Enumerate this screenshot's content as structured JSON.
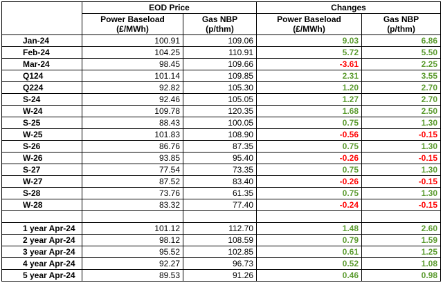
{
  "header": {
    "eod_price": "EOD Price",
    "changes": "Changes",
    "power_baseload_l1": "Power Baseload",
    "power_baseload_l2": "(£/MWh)",
    "gas_nbp_l1": "Gas NBP",
    "gas_nbp_l2": "(p/thm)"
  },
  "rows": [
    {
      "label": "Jan-24",
      "power": "100.91",
      "gas": "109.06",
      "power_chg": "9.03",
      "gas_chg": "6.86"
    },
    {
      "label": "Feb-24",
      "power": "104.25",
      "gas": "110.91",
      "power_chg": "5.72",
      "gas_chg": "5.50"
    },
    {
      "label": "Mar-24",
      "power": "98.45",
      "gas": "109.66",
      "power_chg": "-3.61",
      "gas_chg": "2.25"
    },
    {
      "label": "Q124",
      "power": "101.14",
      "gas": "109.85",
      "power_chg": "2.31",
      "gas_chg": "3.55"
    },
    {
      "label": "Q224",
      "power": "92.82",
      "gas": "105.30",
      "power_chg": "1.20",
      "gas_chg": "2.70"
    },
    {
      "label": "S-24",
      "power": "92.46",
      "gas": "105.05",
      "power_chg": "1.27",
      "gas_chg": "2.70"
    },
    {
      "label": "W-24",
      "power": "109.78",
      "gas": "120.35",
      "power_chg": "1.68",
      "gas_chg": "2.50"
    },
    {
      "label": "S-25",
      "power": "88.43",
      "gas": "100.05",
      "power_chg": "0.75",
      "gas_chg": "1.30"
    },
    {
      "label": "W-25",
      "power": "101.83",
      "gas": "108.90",
      "power_chg": "-0.56",
      "gas_chg": "-0.15"
    },
    {
      "label": "S-26",
      "power": "86.76",
      "gas": "87.35",
      "power_chg": "0.75",
      "gas_chg": "1.30"
    },
    {
      "label": "W-26",
      "power": "93.85",
      "gas": "95.40",
      "power_chg": "-0.26",
      "gas_chg": "-0.15"
    },
    {
      "label": "S-27",
      "power": "77.54",
      "gas": "73.35",
      "power_chg": "0.75",
      "gas_chg": "1.30"
    },
    {
      "label": "W-27",
      "power": "87.52",
      "gas": "83.40",
      "power_chg": "-0.26",
      "gas_chg": "-0.15"
    },
    {
      "label": "S-28",
      "power": "73.76",
      "gas": "61.35",
      "power_chg": "0.75",
      "gas_chg": "1.30"
    },
    {
      "label": "W-28",
      "power": "83.32",
      "gas": "77.40",
      "power_chg": "-0.24",
      "gas_chg": "-0.15"
    }
  ],
  "rolling_rows": [
    {
      "label": "1 year Apr-24",
      "power": "101.12",
      "gas": "112.70",
      "power_chg": "1.48",
      "gas_chg": "2.60"
    },
    {
      "label": "2 year Apr-24",
      "power": "98.12",
      "gas": "108.59",
      "power_chg": "0.79",
      "gas_chg": "1.59"
    },
    {
      "label": "3 year Apr-24",
      "power": "95.52",
      "gas": "102.85",
      "power_chg": "0.61",
      "gas_chg": "1.25"
    },
    {
      "label": "4 year Apr-24",
      "power": "92.27",
      "gas": "96.73",
      "power_chg": "0.52",
      "gas_chg": "1.08"
    },
    {
      "label": "5 year Apr-24",
      "power": "89.53",
      "gas": "91.26",
      "power_chg": "0.46",
      "gas_chg": "0.98"
    }
  ],
  "colors": {
    "positive": "#5b9b2f",
    "negative": "#ff0000"
  }
}
